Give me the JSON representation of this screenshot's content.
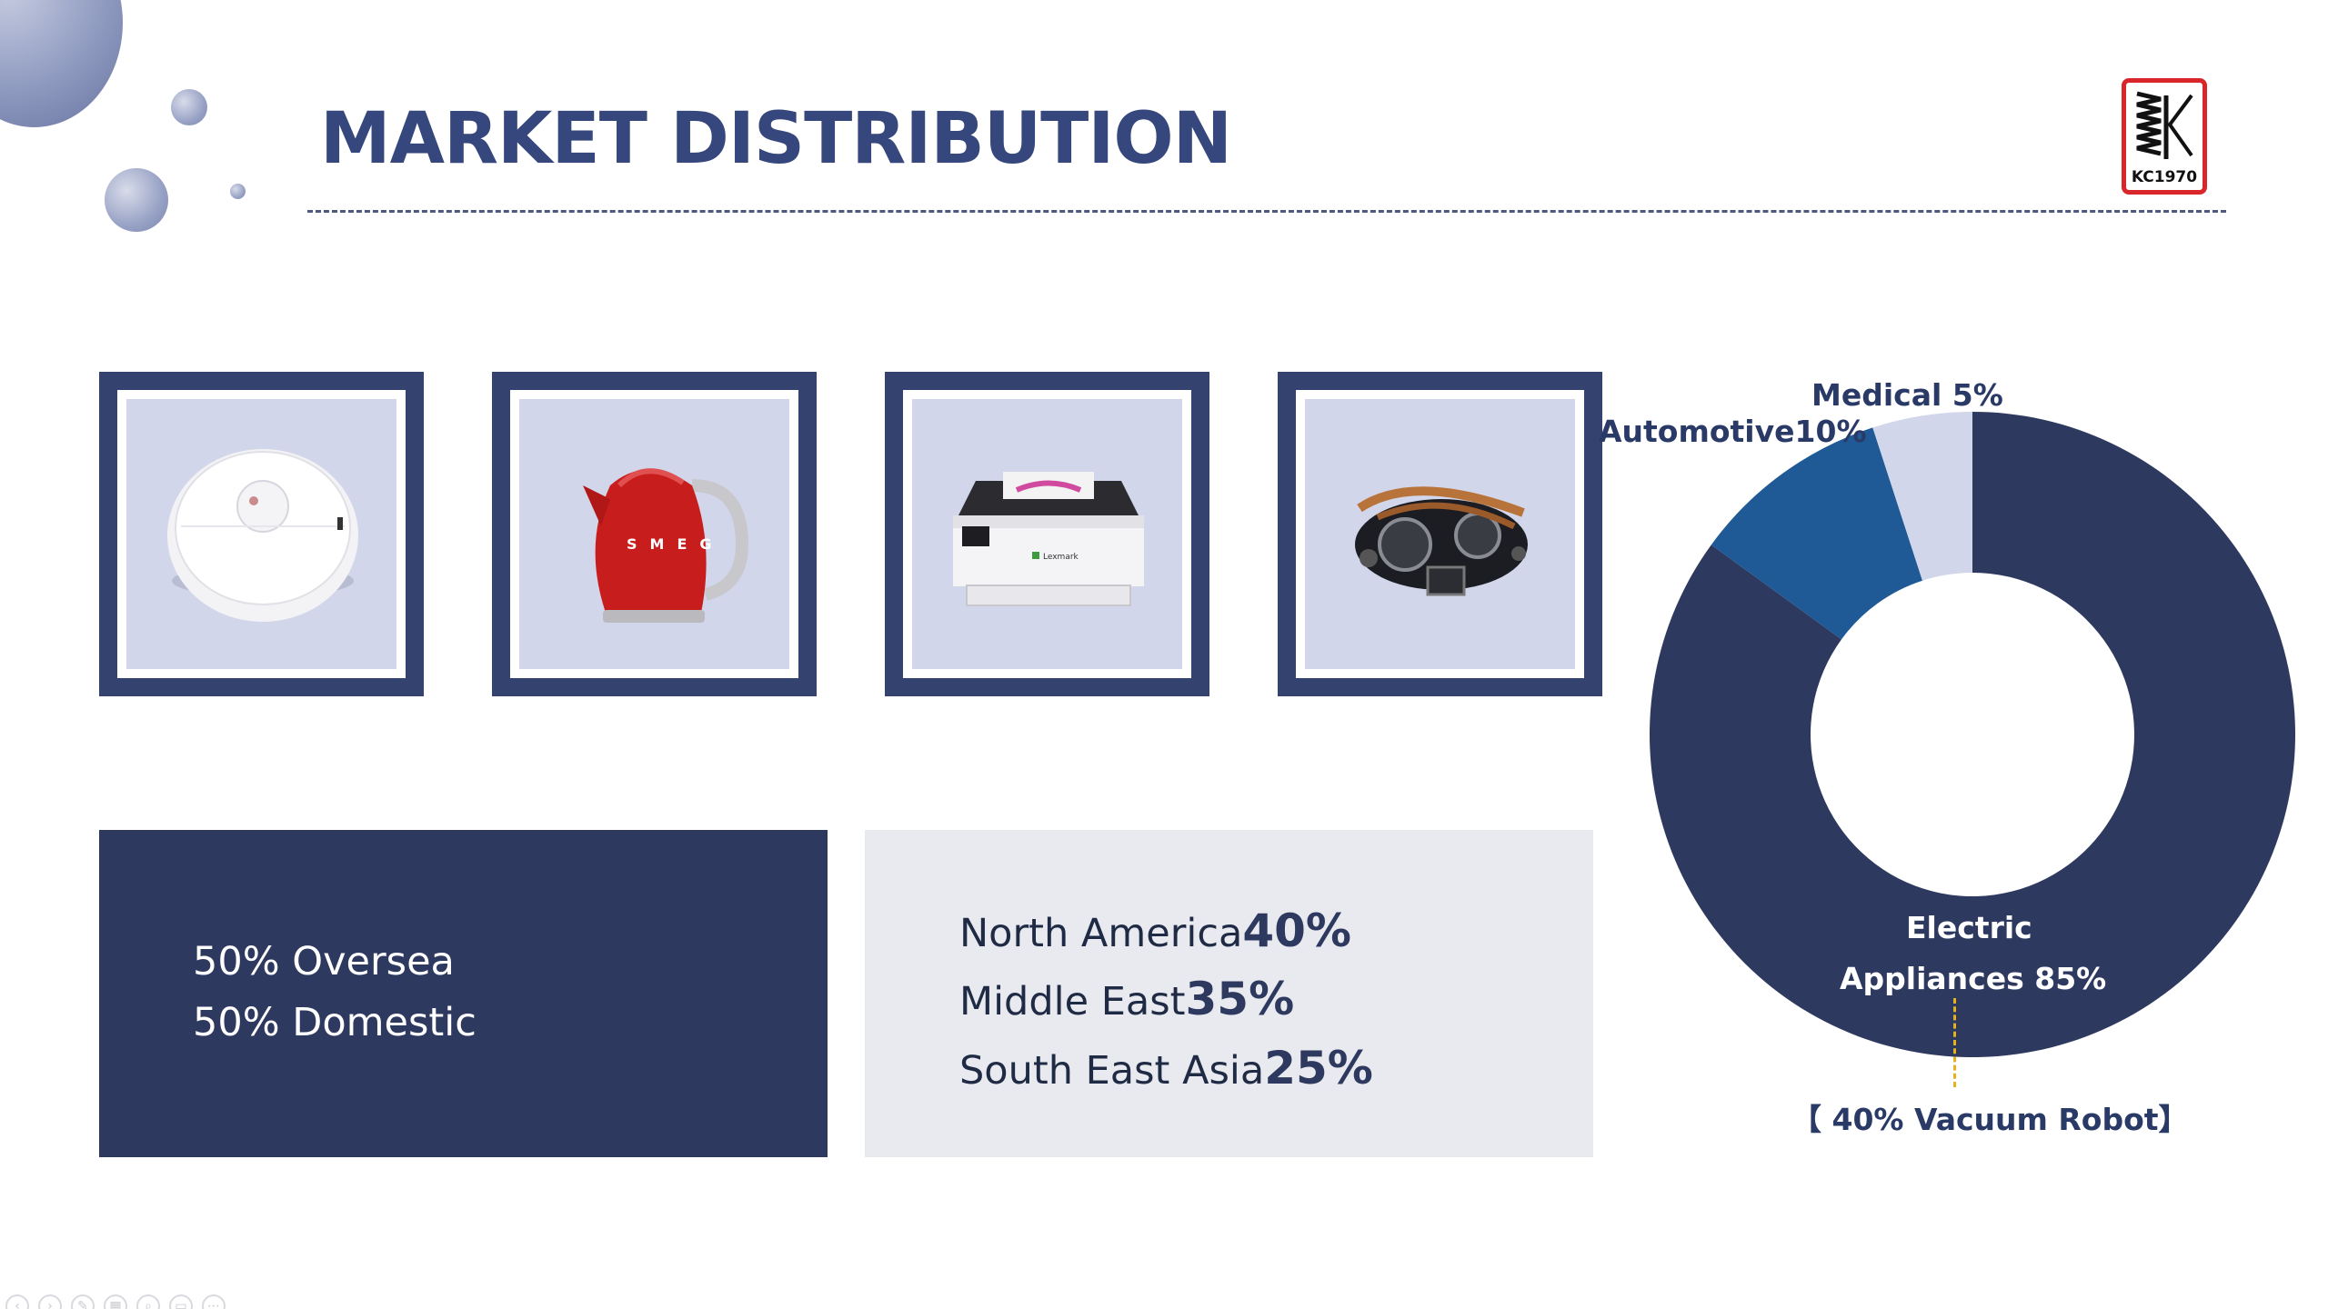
{
  "header": {
    "title": "MARKET DISTRIBUTION",
    "logo_text": "KC1970"
  },
  "products": [
    {
      "name": "vacuum-robot",
      "icon": "robot-vacuum-icon"
    },
    {
      "name": "kettle",
      "icon": "kettle-icon",
      "brand_text": "SMEG"
    },
    {
      "name": "printer",
      "icon": "printer-icon",
      "brand_text": "Lexmark"
    },
    {
      "name": "engine",
      "icon": "engine-icon"
    }
  ],
  "panels": {
    "sales_split": {
      "lines": [
        "50% Oversea",
        "50% Domestic"
      ]
    },
    "regions": [
      {
        "label": "North America",
        "value": "40%"
      },
      {
        "label": "Middle East",
        "value": "35%"
      },
      {
        "label": "South East Asia",
        "value": "25%"
      }
    ]
  },
  "chart_data": {
    "type": "pie",
    "donut": true,
    "title": "",
    "slices": [
      {
        "label": "Electric Appliances",
        "value": 85,
        "color": "#2e395f"
      },
      {
        "label": "Automotive",
        "value": 10,
        "color": "#1f5a96"
      },
      {
        "label": "Medical",
        "value": 5,
        "color": "#d2d6ea"
      }
    ],
    "labels": {
      "medical": "Medical 5%",
      "automotive": "Automotive10%",
      "electric_line1": "Electric",
      "electric_line2": "Appliances 85%"
    },
    "annotation": "【 40% Vacuum Robot】"
  },
  "colors": {
    "navy": "#2e395f",
    "frame": "#33426f",
    "title": "#35477c",
    "accent_blue": "#1f5a96",
    "light": "#d2d6ea",
    "panel_light": "#e9eaef",
    "leader": "#e7b11c",
    "logo_red": "#d8262b"
  }
}
